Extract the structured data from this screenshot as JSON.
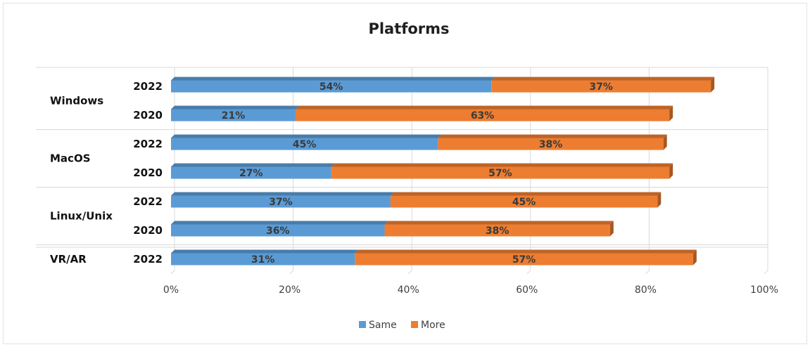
{
  "chart_data": {
    "type": "bar",
    "orientation": "horizontal",
    "stacked": true,
    "title": "Platforms",
    "groups": [
      {
        "label": "Windows",
        "bars": [
          {
            "label": "2022",
            "values": [
              54,
              37
            ]
          },
          {
            "label": "2020",
            "values": [
              21,
              63
            ]
          }
        ]
      },
      {
        "label": "MacOS",
        "bars": [
          {
            "label": "2022",
            "values": [
              45,
              38
            ]
          },
          {
            "label": "2020",
            "values": [
              27,
              57
            ]
          }
        ]
      },
      {
        "label": "Linux/Unix",
        "bars": [
          {
            "label": "2022",
            "values": [
              37,
              45
            ]
          },
          {
            "label": "2020",
            "values": [
              36,
              38
            ]
          }
        ]
      },
      {
        "label": "VR/AR",
        "bars": [
          {
            "label": "2022",
            "values": [
              31,
              57
            ]
          }
        ]
      }
    ],
    "series": [
      {
        "name": "Same",
        "color": "#5b9bd5"
      },
      {
        "name": "More",
        "color": "#ed7d31"
      }
    ],
    "xlim": [
      0,
      100
    ],
    "x_ticks": [
      "0%",
      "20%",
      "40%",
      "60%",
      "80%",
      "100%"
    ],
    "value_suffix": "%",
    "grid": true,
    "legend": "bottom"
  }
}
